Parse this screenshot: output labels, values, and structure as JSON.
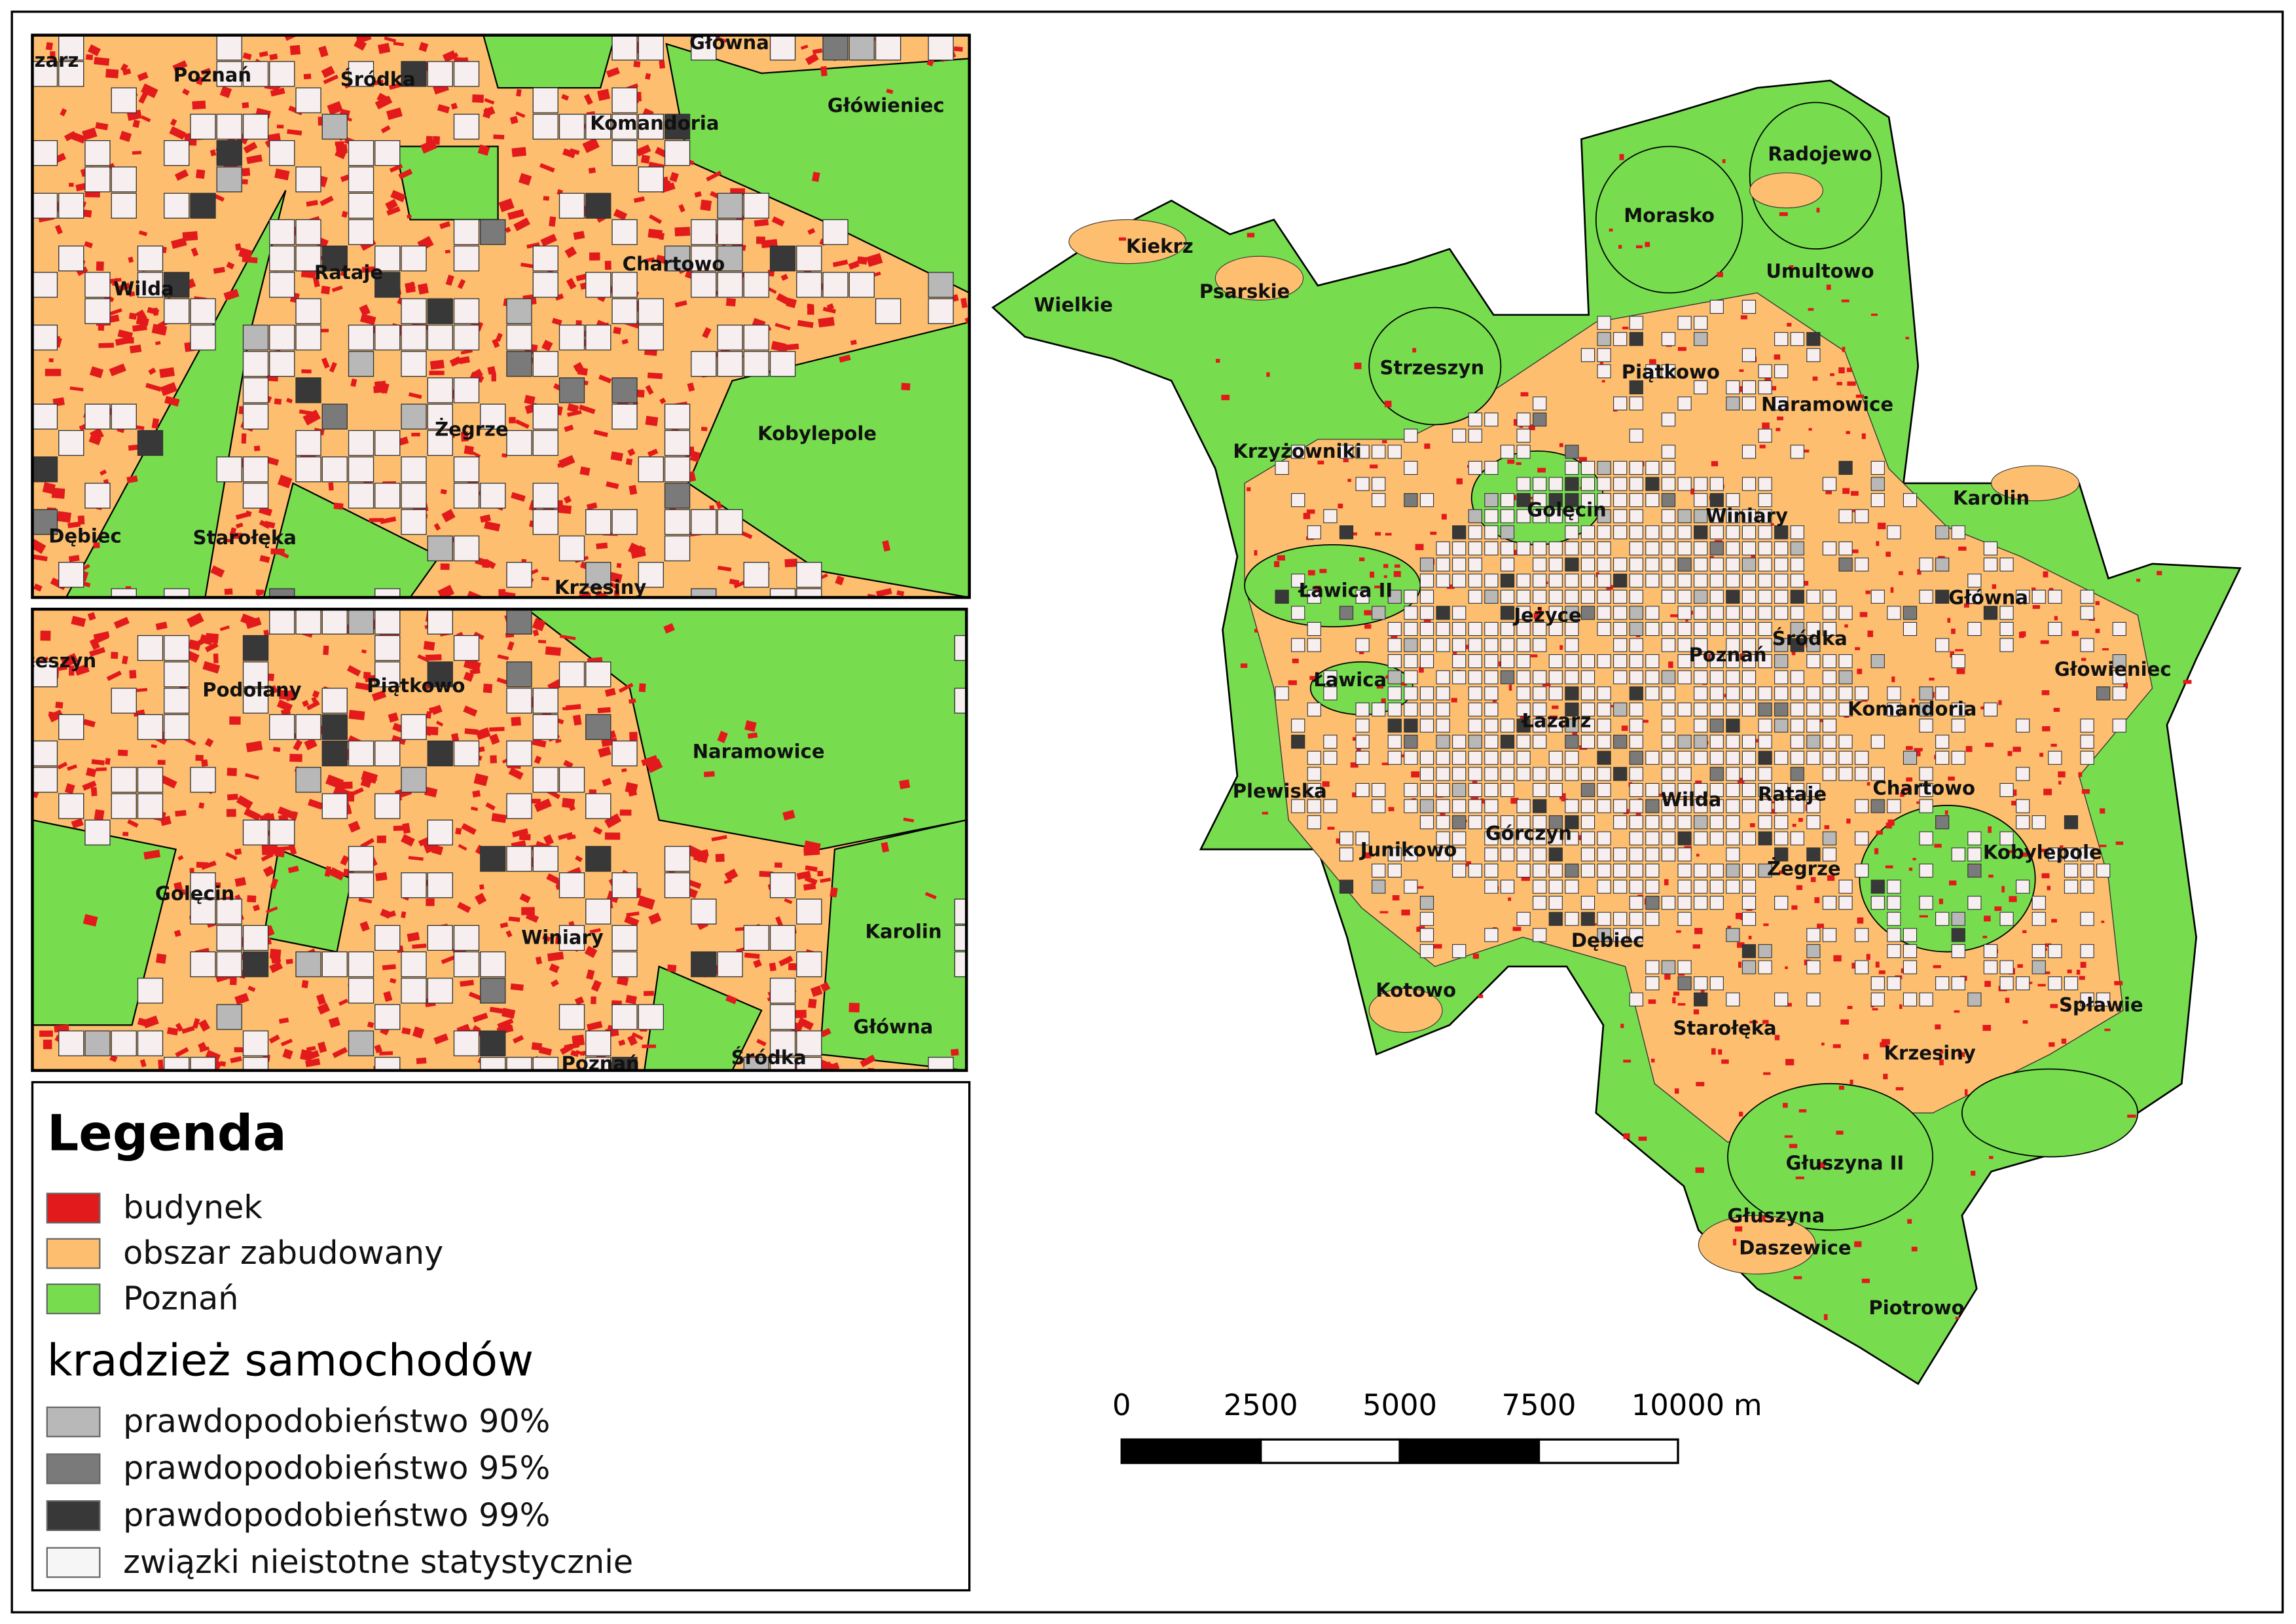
{
  "inset_top": {
    "labels": [
      "Łazarz",
      "Poznań",
      "Śródka",
      "Główna",
      "Komandoria",
      "Główieniec",
      "Wilda",
      "Rataje",
      "Chartowo",
      "Żegrze",
      "Kobylepole",
      "Dębiec",
      "Starołęka",
      "Krzesiny"
    ]
  },
  "inset_bottom": {
    "labels": [
      "Strzeszyn",
      "Podolany",
      "Piątkowo",
      "Naramowice",
      "Golęcin",
      "Karolin",
      "Winiary",
      "Główna",
      "Poznań",
      "Śródka"
    ]
  },
  "main_map": {
    "labels": [
      "Wielkie",
      "Kiekrz",
      "Psarskie",
      "Morasko",
      "Radojewo",
      "Umultowo",
      "Strzeszyn",
      "Piątkowo",
      "Naramowice",
      "Krzyżowniki",
      "Golęcin",
      "Winiary",
      "Karolin",
      "Ławica II",
      "Główna",
      "Jeżyce",
      "Poznań",
      "Śródka",
      "Ławica",
      "Głowieniec",
      "Łazarz",
      "Komandoria",
      "Plewiska",
      "Wilda",
      "Rataje",
      "Chartowo",
      "Junikowo",
      "Górczyn",
      "Kobylepole",
      "Żegrze",
      "Dębiec",
      "Kotowo",
      "Spławie",
      "Starołęka",
      "Krzesiny",
      "Głuszyna II",
      "Głuszyna",
      "Daszewice",
      "Piotrowo"
    ]
  },
  "legend": {
    "title": "Legenda",
    "layers": [
      "budynek",
      "obszar zabudowany",
      "Poznań"
    ],
    "subtitle": "kradzież samochodów",
    "classes": [
      "prawdopodobieństwo 90%",
      "prawdopodobieństwo 95%",
      "prawdopodobieństwo 99%",
      "związki nieistotne statystycznie"
    ]
  },
  "scale_bar": {
    "ticks": [
      0,
      2500,
      5000,
      7500,
      10000
    ],
    "unit": "m"
  }
}
